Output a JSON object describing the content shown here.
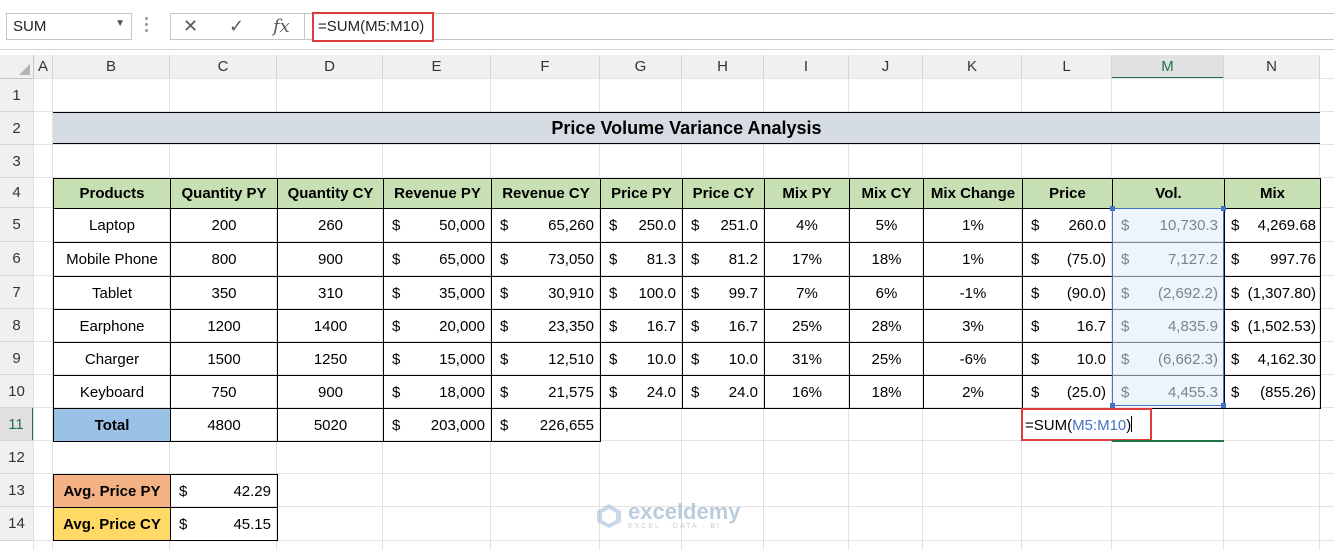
{
  "formula_bar": {
    "name_box": "SUM",
    "formula": "=SUM(M5:M10)",
    "cancel_glyph": "✕",
    "enter_glyph": "✓",
    "fx_glyph": "fx"
  },
  "columns": [
    "A",
    "B",
    "C",
    "D",
    "E",
    "F",
    "G",
    "H",
    "I",
    "J",
    "K",
    "L",
    "M",
    "N"
  ],
  "rows": [
    "1",
    "2",
    "3",
    "4",
    "5",
    "6",
    "7",
    "8",
    "9",
    "10",
    "11",
    "12",
    "13",
    "14"
  ],
  "sheet": {
    "title": "Price Volume Variance Analysis",
    "headers": [
      "Products",
      "Quantity PY",
      "Quantity CY",
      "Revenue PY",
      "Revenue CY",
      "Price PY",
      "Price CY",
      "Mix PY",
      "Mix CY",
      "Mix Change",
      "Price",
      "Vol.",
      "Mix"
    ],
    "data": [
      [
        "Laptop",
        "200",
        "260",
        "50,000",
        "65,260",
        "250.0",
        "251.0",
        "4%",
        "5%",
        "1%",
        "260.0",
        "10,730.3",
        "4,269.68"
      ],
      [
        "Mobile Phone",
        "800",
        "900",
        "65,000",
        "73,050",
        "81.3",
        "81.2",
        "17%",
        "18%",
        "1%",
        "(75.0)",
        "7,127.2",
        "997.76"
      ],
      [
        "Tablet",
        "350",
        "310",
        "35,000",
        "30,910",
        "100.0",
        "99.7",
        "7%",
        "6%",
        "-1%",
        "(90.0)",
        "(2,692.2)",
        "(1,307.80)"
      ],
      [
        "Earphone",
        "1200",
        "1400",
        "20,000",
        "23,350",
        "16.7",
        "16.7",
        "25%",
        "28%",
        "3%",
        "16.7",
        "4,835.9",
        "(1,502.53)"
      ],
      [
        "Charger",
        "1500",
        "1250",
        "15,000",
        "12,510",
        "10.0",
        "10.0",
        "31%",
        "25%",
        "-6%",
        "10.0",
        "(6,662.3)",
        "4,162.30"
      ],
      [
        "Keyboard",
        "750",
        "900",
        "18,000",
        "21,575",
        "24.0",
        "24.0",
        "16%",
        "18%",
        "2%",
        "(25.0)",
        "4,455.3",
        "(855.26)"
      ]
    ],
    "total": {
      "label": "Total",
      "qty_py": "4800",
      "qty_cy": "5020",
      "rev_py": "203,000",
      "rev_cy": "226,655"
    },
    "currency": "$",
    "edit_cell": {
      "prefix": "=SUM(",
      "ref": "M5:M10",
      "suffix": ")"
    },
    "avg_price_py": {
      "label": "Avg. Price PY",
      "value": "42.29"
    },
    "avg_price_cy": {
      "label": "Avg. Price CY",
      "value": "45.15"
    }
  },
  "watermark": {
    "name": "exceldemy",
    "tagline": "EXCEL · DATA · BI"
  },
  "colors": {
    "header_green": "#c6e0b4",
    "total_blue": "#9bc2e6",
    "avg_py_orange": "#f4b183",
    "avg_cy_yellow": "#ffd966",
    "title_grey": "#d6dce4",
    "highlight_red": "#e03c3c",
    "selection_blue": "#4472c4",
    "excel_green": "#217346"
  }
}
